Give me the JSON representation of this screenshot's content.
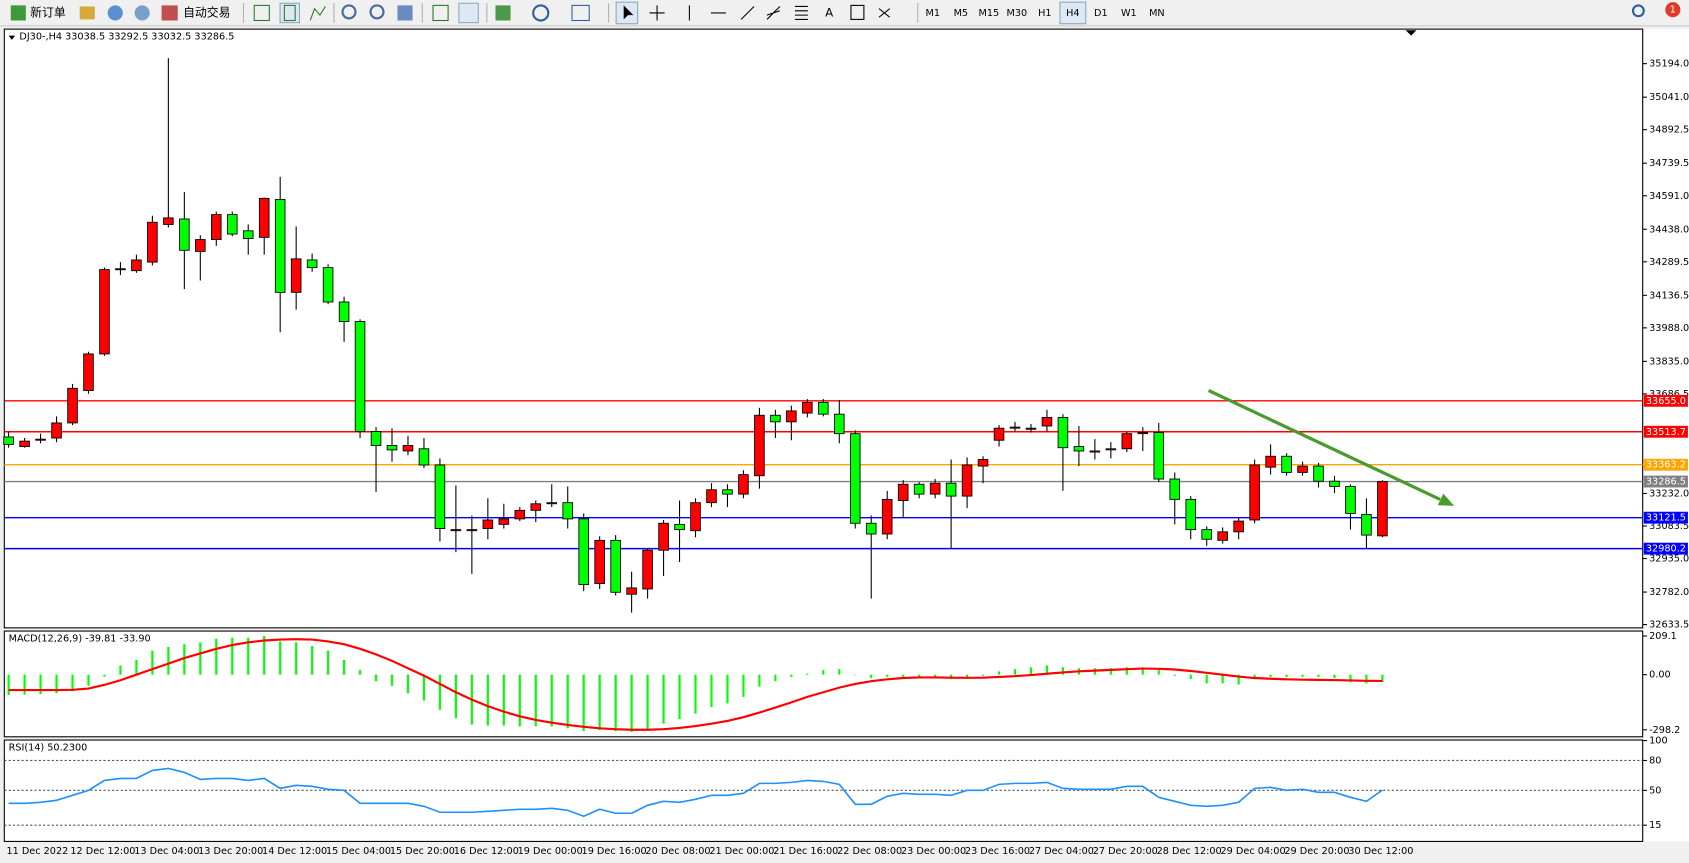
{
  "toolbar": {
    "new_order": "新订单",
    "auto_trading": "自动交易",
    "text_tool": "A",
    "timeframes": [
      "M1",
      "M5",
      "M15",
      "M30",
      "H1",
      "H4",
      "D1",
      "W1",
      "MN"
    ],
    "notifications": 1
  },
  "chart_data": [
    {
      "type": "candlestick",
      "title": "DJ30-,H4  33038.5 33292.5 33032.5 33286.5",
      "categories": [
        "11 Dec 2022",
        null,
        null,
        null,
        "12 Dec 12:00",
        null,
        null,
        null,
        "13 Dec 04:00",
        null,
        null,
        null,
        "13 Dec 20:00",
        null,
        null,
        null,
        "14 Dec 12:00",
        null,
        null,
        null,
        "15 Dec 04:00",
        null,
        null,
        null,
        "15 Dec 20:00",
        null,
        null,
        null,
        "16 Dec 12:00",
        null,
        null,
        null,
        "19 Dec 00:00",
        null,
        null,
        null,
        "19 Dec 16:00",
        null,
        null,
        null,
        "20 Dec 08:00",
        null,
        null,
        null,
        "21 Dec 00:00",
        null,
        null,
        null,
        "21 Dec 16:00",
        null,
        null,
        null,
        "22 Dec 08:00",
        null,
        null,
        null,
        "23 Dec 00:00",
        null,
        null,
        null,
        "23 Dec 16:00",
        null,
        null,
        null,
        "27 Dec 04:00",
        null,
        null,
        null,
        "27 Dec 20:00",
        null,
        null,
        null,
        "28 Dec 12:00",
        null,
        null,
        null,
        "29 Dec 04:00",
        null,
        null,
        null,
        "29 Dec 20:00",
        null,
        null,
        null,
        "30 Dec 12:00",
        null,
        null
      ],
      "open": [
        33490,
        33446,
        33480,
        33485,
        33554,
        33702,
        33869,
        34258,
        34249,
        34288,
        34460,
        34485,
        34337,
        34391,
        34505,
        34431,
        34401,
        34574,
        34150,
        34298,
        34263,
        34106,
        34017,
        33515,
        33451,
        33426,
        33436,
        33362,
        33067,
        33067,
        33072,
        33091,
        33116,
        33155,
        33190,
        33190,
        33116,
        32821,
        33018,
        32772,
        32796,
        32973,
        33091,
        33062,
        33190,
        33249,
        33229,
        33313,
        33589,
        33559,
        33599,
        33648,
        33594,
        33505,
        33096,
        33047,
        33200,
        33274,
        33229,
        33279,
        33220,
        33357,
        33475,
        33535,
        33530,
        33540,
        33579,
        33446,
        33426,
        33436,
        33436,
        33510,
        33510,
        33298,
        33205,
        33067,
        33018,
        33057,
        33111,
        33352,
        33402,
        33328,
        33357,
        33288,
        33264,
        33136,
        33038.5
      ],
      "high": [
        33515,
        33485,
        33505,
        33584,
        33732,
        33879,
        34263,
        34288,
        34322,
        34500,
        35219,
        34608,
        34411,
        34519,
        34519,
        34460,
        34583,
        34677,
        34451,
        34327,
        34278,
        34130,
        34027,
        33535,
        33530,
        33495,
        33485,
        33392,
        33269,
        33131,
        33210,
        33185,
        33170,
        33200,
        33274,
        33264,
        33141,
        33037,
        33042,
        32875,
        32983,
        33111,
        33200,
        33210,
        33279,
        33274,
        33338,
        33623,
        33614,
        33633,
        33663,
        33663,
        33658,
        33520,
        33131,
        33244,
        33293,
        33284,
        33298,
        33387,
        33397,
        33402,
        33544,
        33559,
        33549,
        33614,
        33594,
        33540,
        33480,
        33466,
        33515,
        33535,
        33554,
        33328,
        33220,
        33082,
        33077,
        33121,
        33387,
        33456,
        33416,
        33377,
        33372,
        33313,
        33274,
        33210,
        33292.5
      ],
      "low": [
        33441,
        33441,
        33461,
        33466,
        33544,
        33687,
        33860,
        34229,
        34239,
        34273,
        34446,
        34165,
        34204,
        34362,
        34406,
        34322,
        34322,
        33968,
        34071,
        34244,
        34096,
        33924,
        33485,
        33239,
        33377,
        33407,
        33348,
        33013,
        32964,
        32865,
        33023,
        33072,
        33106,
        33101,
        33170,
        33072,
        32786,
        32796,
        32767,
        32688,
        32752,
        32855,
        32919,
        33032,
        33170,
        33170,
        33210,
        33254,
        33485,
        33475,
        33579,
        33584,
        33461,
        33072,
        32752,
        33023,
        33121,
        33210,
        33210,
        32983,
        33165,
        33279,
        33446,
        33515,
        33510,
        33515,
        33244,
        33357,
        33387,
        33392,
        33421,
        33426,
        33284,
        33091,
        33023,
        32993,
        33003,
        33023,
        33096,
        33318,
        33313,
        33313,
        33259,
        33234,
        33067,
        32983,
        33032.5
      ],
      "close": [
        33456,
        33471,
        33480,
        33554,
        33712,
        33869,
        34254,
        34258,
        34298,
        34470,
        34490,
        34342,
        34391,
        34505,
        34416,
        34396,
        34579,
        34150,
        34303,
        34263,
        34106,
        34017,
        33515,
        33451,
        33431,
        33451,
        33362,
        33072,
        33067,
        33067,
        33111,
        33116,
        33155,
        33185,
        33190,
        33116,
        32816,
        33018,
        32781,
        32801,
        32973,
        33096,
        33067,
        33190,
        33249,
        33229,
        33318,
        33589,
        33559,
        33609,
        33648,
        33594,
        33505,
        33096,
        33047,
        33205,
        33274,
        33229,
        33279,
        33220,
        33362,
        33387,
        33530,
        33535,
        33530,
        33579,
        33441,
        33426,
        33426,
        33436,
        33505,
        33510,
        33298,
        33205,
        33067,
        33023,
        33057,
        33106,
        33362,
        33402,
        33328,
        33357,
        33288,
        33264,
        33141,
        33042,
        33286.5
      ],
      "up_color": "#ff0000",
      "down_color": "#00ff00",
      "ylim": [
        32618.7,
        35351.6
      ],
      "yticks": [
        {
          "value": 35194,
          "label": "35194.0"
        },
        {
          "value": 35041,
          "label": "35041.0"
        },
        34892.5,
        34739.5,
        {
          "value": 34591,
          "label": "34591.0"
        },
        {
          "value": 34438,
          "label": "34438.0"
        },
        34289.5,
        34136.5,
        {
          "value": 33988,
          "label": "33988.0"
        },
        {
          "value": 33835,
          "label": "33835.0"
        },
        33686.5,
        {
          "value": 33232,
          "label": "33232.0"
        },
        33083.5,
        {
          "value": 32935,
          "label": "32935.0"
        },
        {
          "value": 32782,
          "label": "32782.0"
        },
        32633.5
      ],
      "hlines": [
        {
          "value": 33655,
          "label": "33655.0",
          "color": "#ff0000"
        },
        {
          "value": 33513.7,
          "label": "33513.7",
          "color": "#ff0000"
        },
        {
          "value": 33363.2,
          "label": "33363.2",
          "color": "#ffa500"
        },
        {
          "value": 33286.5,
          "label": "33286.5",
          "color": "#808080"
        },
        {
          "value": 33121.5,
          "label": "33121.5",
          "color": "#0000ff"
        },
        {
          "value": 32980.2,
          "label": "32980.2",
          "color": "#0000ff"
        }
      ]
    },
    {
      "type": "macd",
      "title": "MACD(12,26,9) -39.81 -33.90",
      "histogram": [
        -110,
        -108,
        -105,
        -100,
        -90,
        -60,
        -10,
        50,
        80,
        130,
        150,
        165,
        175,
        195,
        200,
        200,
        210,
        180,
        175,
        155,
        130,
        80,
        25,
        -35,
        -60,
        -100,
        -140,
        -190,
        -235,
        -270,
        -275,
        -275,
        -280,
        -280,
        -280,
        -290,
        -305,
        -300,
        -305,
        -310,
        -300,
        -265,
        -240,
        -210,
        -175,
        -155,
        -120,
        -65,
        -35,
        -12,
        6,
        25,
        30,
        0,
        -18,
        -12,
        -12,
        -18,
        -18,
        -24,
        -18,
        -6,
        18,
        30,
        40,
        50,
        40,
        35,
        35,
        35,
        40,
        40,
        25,
        -6,
        -24,
        -47,
        -47,
        -53,
        -24,
        -12,
        -12,
        -12,
        -12,
        -18,
        -41,
        -47,
        -39.81
      ],
      "signal": [
        -83,
        -83,
        -83,
        -83,
        -82,
        -75,
        -55,
        -30,
        0,
        30,
        60,
        90,
        115,
        140,
        160,
        175,
        185,
        190,
        192,
        190,
        180,
        165,
        140,
        110,
        75,
        35,
        -5,
        -50,
        -95,
        -135,
        -170,
        -200,
        -225,
        -245,
        -260,
        -272,
        -282,
        -290,
        -295,
        -298,
        -298,
        -295,
        -288,
        -278,
        -265,
        -250,
        -230,
        -205,
        -178,
        -150,
        -120,
        -95,
        -70,
        -50,
        -35,
        -25,
        -18,
        -15,
        -15,
        -16,
        -17,
        -16,
        -12,
        -8,
        -2,
        5,
        12,
        18,
        22,
        26,
        30,
        33,
        32,
        28,
        20,
        10,
        0,
        -10,
        -18,
        -22,
        -25,
        -27,
        -28,
        -29,
        -31,
        -33,
        -33.9
      ],
      "histogram_color": "#00ff00",
      "signal_color": "#ff0000",
      "ylim": [
        -336,
        236
      ],
      "yticks": [
        209.1,
        {
          "value": 0,
          "label": "0.00"
        },
        -298.2
      ]
    },
    {
      "type": "line",
      "title": "RSI(14) 50.2300",
      "values": [
        37,
        37,
        38,
        40,
        45,
        50,
        60,
        62,
        62,
        70,
        72,
        68,
        61,
        62,
        62,
        60,
        62,
        52,
        55,
        54,
        51,
        50,
        37,
        37,
        37,
        37,
        34,
        28,
        28,
        28,
        29,
        30,
        31,
        31,
        32,
        30,
        24,
        31,
        27,
        27,
        35,
        39,
        38,
        41,
        45,
        45,
        47,
        57,
        57,
        58,
        60,
        59,
        56,
        36,
        36,
        44,
        47,
        46,
        46,
        45,
        50,
        50,
        56,
        57,
        57,
        58,
        52,
        51,
        51,
        51,
        54,
        54,
        43,
        39,
        35,
        34,
        35,
        38,
        52,
        53,
        50,
        51,
        48,
        48,
        43,
        39,
        50.23
      ],
      "color": "#1e90ff",
      "ylim": [
        0,
        100
      ],
      "yticks": [
        100,
        80,
        50,
        15
      ]
    }
  ]
}
